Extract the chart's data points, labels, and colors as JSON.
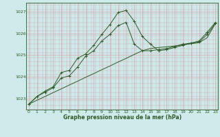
{
  "xlabel": "Graphe pression niveau de la mer (hPa)",
  "bg_color": "#ceeaea",
  "grid_color": "#d4a8b0",
  "line_color": "#2d5a27",
  "ylim": [
    1022.5,
    1027.4
  ],
  "xlim": [
    -0.3,
    23.3
  ],
  "yticks": [
    1023,
    1024,
    1025,
    1026,
    1027
  ],
  "xticks": [
    0,
    1,
    2,
    3,
    4,
    5,
    6,
    7,
    8,
    9,
    10,
    11,
    12,
    13,
    14,
    15,
    16,
    17,
    18,
    19,
    20,
    21,
    22,
    23
  ],
  "line_peak": {
    "x": [
      0,
      1,
      2,
      3,
      4,
      5,
      6,
      7,
      8,
      9,
      10,
      11,
      12,
      13,
      14,
      15,
      16,
      17,
      18,
      19,
      20,
      21,
      22,
      23
    ],
    "y": [
      1022.75,
      1023.1,
      1023.35,
      1023.55,
      1024.2,
      1024.3,
      1024.85,
      1025.05,
      1025.45,
      1025.95,
      1026.4,
      1026.95,
      1027.05,
      1026.55,
      1025.85,
      1025.5,
      1025.2,
      1025.25,
      1025.35,
      1025.45,
      1025.55,
      1025.65,
      1026.05,
      1026.5
    ]
  },
  "line_mid": {
    "x": [
      0,
      1,
      2,
      3,
      4,
      5,
      6,
      7,
      8,
      9,
      10,
      11,
      12,
      13,
      14,
      15,
      16,
      17,
      18,
      19,
      20,
      21,
      22,
      23
    ],
    "y": [
      1022.75,
      1023.1,
      1023.3,
      1023.5,
      1023.95,
      1024.05,
      1024.45,
      1024.95,
      1025.2,
      1025.65,
      1025.95,
      1026.35,
      1026.5,
      1025.5,
      1025.2,
      1025.2,
      1025.25,
      1025.3,
      1025.4,
      1025.5,
      1025.55,
      1025.6,
      1025.95,
      1026.45
    ]
  },
  "line_trend": {
    "x": [
      0,
      1,
      2,
      3,
      4,
      5,
      6,
      7,
      8,
      9,
      10,
      11,
      12,
      13,
      14,
      15,
      16,
      17,
      18,
      19,
      20,
      21,
      22,
      23
    ],
    "y": [
      1022.75,
      1022.93,
      1023.1,
      1023.28,
      1023.45,
      1023.63,
      1023.8,
      1023.98,
      1024.15,
      1024.33,
      1024.5,
      1024.68,
      1024.85,
      1025.03,
      1025.2,
      1025.3,
      1025.35,
      1025.38,
      1025.42,
      1025.47,
      1025.52,
      1025.57,
      1025.8,
      1026.45
    ]
  }
}
